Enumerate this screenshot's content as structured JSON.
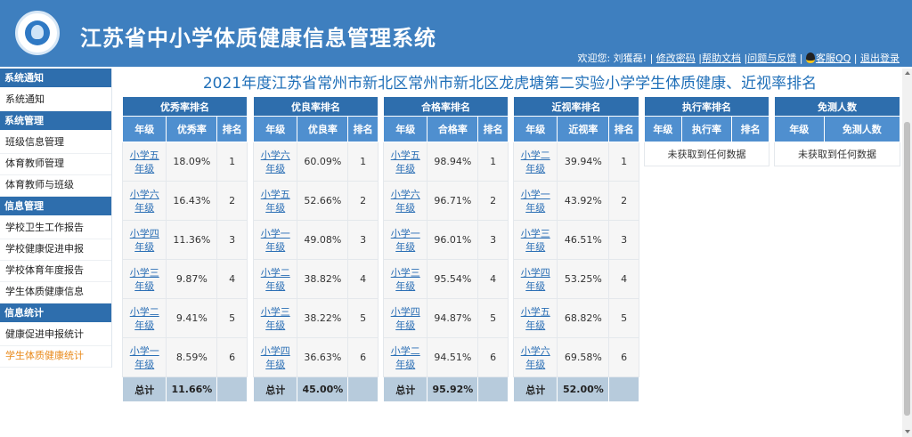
{
  "header": {
    "system_title": "江苏省中小学体质健康信息管理系统",
    "welcome": "欢迎您: 刘獲磊! |",
    "links": [
      "修改密码",
      "帮助文档",
      "问题与反馈",
      "客服QQ",
      "退出登录"
    ],
    "separator": "|"
  },
  "sidebar": {
    "sections": [
      {
        "title": "系统通知",
        "items": [
          "系统通知"
        ]
      },
      {
        "title": "系统管理",
        "items": [
          "班级信息管理",
          "体育教师管理",
          "体育教师与班级"
        ]
      },
      {
        "title": "信息管理",
        "items": [
          "学校卫生工作报告",
          "学校健康促进申报",
          "学校体育年度报告",
          "学生体质健康信息"
        ]
      },
      {
        "title": "信息统计",
        "items": [
          "健康促进申报统计",
          "学生体质健康统计"
        ]
      }
    ]
  },
  "page_title": "2021年度江苏省常州市新北区常州市新北区龙虎塘第二实验小学学生体质健康、近视率排名",
  "colors": {
    "header_bg": "#3e7fbf",
    "table_group_header": "#2e6ead",
    "table_col_header": "#4f8fcf",
    "total_row": "#b7cbdc",
    "link": "#2b6fb5",
    "active_menu": "#e98a1b"
  },
  "tables": {
    "youxiu": {
      "title": "优秀率排名",
      "h1": "年级",
      "h2": "优秀率",
      "h3": "排名",
      "rows": [
        {
          "g1": "小学五",
          "g2": "年级",
          "v": "18.09%",
          "r": "1"
        },
        {
          "g1": "小学六",
          "g2": "年级",
          "v": "16.43%",
          "r": "2"
        },
        {
          "g1": "小学四",
          "g2": "年级",
          "v": "11.36%",
          "r": "3"
        },
        {
          "g1": "小学三",
          "g2": "年级",
          "v": "9.87%",
          "r": "4"
        },
        {
          "g1": "小学二",
          "g2": "年级",
          "v": "9.41%",
          "r": "5"
        },
        {
          "g1": "小学一",
          "g2": "年级",
          "v": "8.59%",
          "r": "6"
        }
      ],
      "total_label": "总计",
      "total_value": "11.66%"
    },
    "youliang": {
      "title": "优良率排名",
      "h1": "年级",
      "h2": "优良率",
      "h3": "排名",
      "rows": [
        {
          "g1": "小学六",
          "g2": "年级",
          "v": "60.09%",
          "r": "1"
        },
        {
          "g1": "小学五",
          "g2": "年级",
          "v": "52.66%",
          "r": "2"
        },
        {
          "g1": "小学一",
          "g2": "年级",
          "v": "49.08%",
          "r": "3"
        },
        {
          "g1": "小学二",
          "g2": "年级",
          "v": "38.82%",
          "r": "4"
        },
        {
          "g1": "小学三",
          "g2": "年级",
          "v": "38.22%",
          "r": "5"
        },
        {
          "g1": "小学四",
          "g2": "年级",
          "v": "36.63%",
          "r": "6"
        }
      ],
      "total_label": "总计",
      "total_value": "45.00%"
    },
    "hege": {
      "title": "合格率排名",
      "h1": "年级",
      "h2": "合格率",
      "h3": "排名",
      "rows": [
        {
          "g1": "小学五",
          "g2": "年级",
          "v": "98.94%",
          "r": "1"
        },
        {
          "g1": "小学六",
          "g2": "年级",
          "v": "96.71%",
          "r": "2"
        },
        {
          "g1": "小学一",
          "g2": "年级",
          "v": "96.01%",
          "r": "3"
        },
        {
          "g1": "小学三",
          "g2": "年级",
          "v": "95.54%",
          "r": "4"
        },
        {
          "g1": "小学四",
          "g2": "年级",
          "v": "94.87%",
          "r": "5"
        },
        {
          "g1": "小学二",
          "g2": "年级",
          "v": "94.51%",
          "r": "6"
        }
      ],
      "total_label": "总计",
      "total_value": "95.92%"
    },
    "jinshi": {
      "title": "近视率排名",
      "h1": "年级",
      "h2": "近视率",
      "h3": "排名",
      "rows": [
        {
          "g1": "小学二",
          "g2": "年级",
          "v": "39.94%",
          "r": "1"
        },
        {
          "g1": "小学一",
          "g2": "年级",
          "v": "43.92%",
          "r": "2"
        },
        {
          "g1": "小学三",
          "g2": "年级",
          "v": "46.51%",
          "r": "3"
        },
        {
          "g1": "小学四",
          "g2": "年级",
          "v": "53.25%",
          "r": "4"
        },
        {
          "g1": "小学五",
          "g2": "年级",
          "v": "68.82%",
          "r": "5"
        },
        {
          "g1": "小学六",
          "g2": "年级",
          "v": "69.58%",
          "r": "6"
        }
      ],
      "total_label": "总计",
      "total_value": "52.00%"
    },
    "zhixing": {
      "title": "执行率排名",
      "h1": "年级",
      "h2": "执行率",
      "h3": "排名",
      "empty": "未获取到任何数据"
    },
    "mianche": {
      "title": "免测人数",
      "h1": "年级",
      "h2": "免测人数",
      "empty": "未获取到任何数据"
    }
  }
}
